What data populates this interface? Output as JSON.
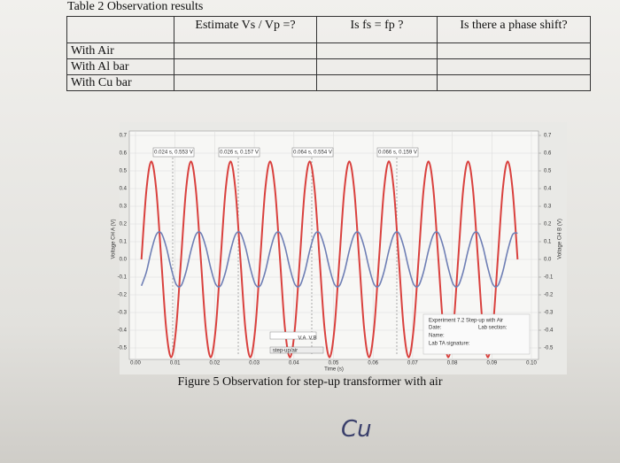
{
  "table": {
    "title": "Table 2 Observation results",
    "headers": [
      "Estimate Vs / Vp =?",
      "Is fs = fp ?",
      "Is there a phase shift?"
    ],
    "rows": [
      "With Air",
      "With Al bar",
      "With Cu bar"
    ]
  },
  "figure": {
    "chart_data": {
      "type": "line",
      "x_label": "Time (s)",
      "y_label": "Voltage CH A (V)",
      "y2_label": "Voltage CH B (V)",
      "annotations": [
        "0.024 s, 0.553 V",
        "0.026 s, 0.157 V",
        "0.064 s, 0.554 V",
        "0.066 s, 0.159 V"
      ],
      "info_box": [
        "Experiment 7.2 Step-up with Air",
        "Date:",
        "Lab section:",
        "Name:",
        "Lab TA signature:"
      ],
      "controls": [
        "V.A",
        "V.B",
        "step-up/air"
      ],
      "x": [
        0.0015,
        0.00275,
        0.004,
        0.00525,
        0.0065,
        0.00775,
        0.009,
        0.01025,
        0.0115,
        0.01275,
        0.014,
        0.01525,
        0.0165,
        0.01775,
        0.019,
        0.02025,
        0.0215,
        0.02275,
        0.024,
        0.02525,
        0.0265,
        0.02775,
        0.029,
        0.03025,
        0.0315,
        0.03275,
        0.034,
        0.03525,
        0.0365,
        0.03775,
        0.039,
        0.04025,
        0.0415,
        0.04275,
        0.044,
        0.04525,
        0.0465,
        0.04775,
        0.049,
        0.05025,
        0.0515,
        0.05275,
        0.054,
        0.05525,
        0.0565,
        0.05775,
        0.059,
        0.06025,
        0.0615,
        0.06275,
        0.064,
        0.06525,
        0.0665,
        0.06775,
        0.069,
        0.07025,
        0.0715,
        0.07275,
        0.074,
        0.07525,
        0.0765,
        0.07775,
        0.079,
        0.08025,
        0.0815,
        0.08275,
        0.084,
        0.08525,
        0.0865,
        0.08775,
        0.089,
        0.09025,
        0.0915,
        0.09275,
        0.094,
        0.09525,
        0.0965
      ],
      "series": [
        {
          "name": "Voltage CH A",
          "color": "#d9413e",
          "values": [
            0,
            0.391,
            0.553,
            0.391,
            0,
            -0.391,
            -0.553,
            -0.391,
            0,
            0.391,
            0.553,
            0.391,
            0,
            -0.391,
            -0.553,
            -0.391,
            0,
            0.391,
            0.553,
            0.391,
            0,
            -0.391,
            -0.553,
            -0.391,
            0,
            0.391,
            0.553,
            0.391,
            0,
            -0.391,
            -0.553,
            -0.391,
            0,
            0.391,
            0.553,
            0.391,
            0,
            -0.391,
            -0.553,
            -0.391,
            0,
            0.391,
            0.553,
            0.391,
            0,
            -0.391,
            -0.553,
            -0.391,
            0,
            0.391,
            0.554,
            0.391,
            0,
            -0.391,
            -0.553,
            -0.391,
            0,
            0.391,
            0.553,
            0.391,
            0,
            -0.391,
            -0.553,
            -0.391,
            0,
            0.391,
            0.553,
            0.391,
            0,
            -0.391,
            -0.553,
            -0.391,
            0,
            0.391,
            0.553,
            0.391,
            0
          ]
        },
        {
          "name": "Voltage CH B",
          "color": "#6f7fb5",
          "axis": "y2",
          "values": [
            -0.149,
            -0.071,
            0.049,
            0.14,
            0.149,
            0.071,
            -0.049,
            -0.14,
            -0.149,
            -0.071,
            0.049,
            0.14,
            0.149,
            0.071,
            -0.049,
            -0.14,
            -0.149,
            -0.071,
            0.049,
            0.14,
            0.149,
            0.071,
            -0.049,
            -0.14,
            -0.149,
            -0.071,
            0.049,
            0.14,
            0.149,
            0.071,
            -0.049,
            -0.14,
            -0.149,
            -0.071,
            0.049,
            0.14,
            0.149,
            0.071,
            -0.049,
            -0.14,
            -0.149,
            -0.071,
            0.049,
            0.14,
            0.149,
            0.071,
            -0.049,
            -0.14,
            -0.149,
            -0.071,
            0.049,
            0.14,
            0.149,
            0.071,
            -0.049,
            -0.14,
            -0.149,
            -0.071,
            0.049,
            0.14,
            0.149,
            0.071,
            -0.049,
            -0.14,
            -0.149,
            -0.071,
            0.049,
            0.14,
            0.149,
            0.071,
            -0.049,
            -0.14,
            -0.149,
            -0.071,
            0.049,
            0.14,
            0.149
          ]
        }
      ],
      "xlim": [
        0,
        0.1
      ],
      "xticks": [
        {
          "value": 0,
          "label": "0.00"
        },
        0.01,
        0.02,
        0.03,
        0.04,
        0.05,
        0.06,
        0.07,
        0.08,
        0.09,
        {
          "value": 0.1,
          "label": "0.10"
        }
      ],
      "ylim": [
        -0.55,
        0.7
      ],
      "yticks": [
        0.7,
        0.6,
        0.5,
        0.4,
        0.3,
        0.2,
        0.1,
        {
          "value": 0,
          "label": "0.0"
        },
        -0.1,
        -0.2,
        -0.3,
        -0.4,
        -0.5
      ],
      "y2lim": [
        -0.55,
        0.7
      ],
      "y2ticks": [
        0.7,
        0.6,
        0.5,
        0.4,
        0.3,
        0.2,
        0.1,
        {
          "value": 0,
          "label": "0.0"
        },
        -0.1,
        -0.2,
        -0.3,
        -0.4,
        -0.5
      ],
      "grid": true
    },
    "caption": "Figure 5    Observation for step-up transformer with air"
  },
  "handwriting": "Cu"
}
